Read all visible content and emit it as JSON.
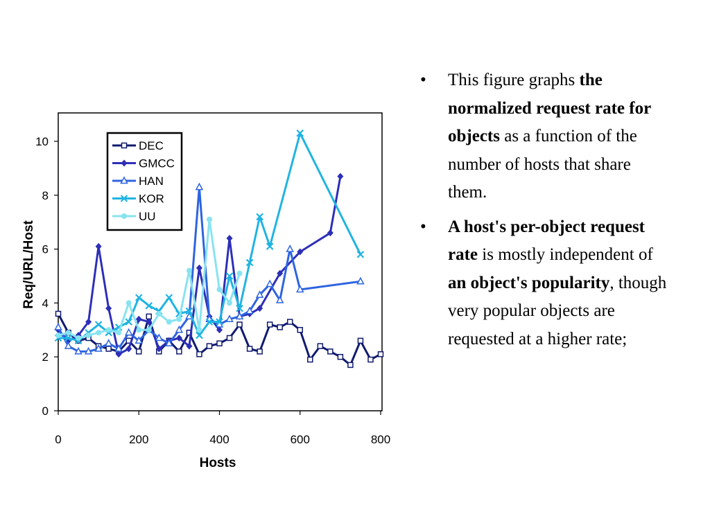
{
  "chart_data": {
    "type": "line",
    "xlabel": "Hosts",
    "ylabel": "Req/URL/Host",
    "xlim": [
      0,
      800
    ],
    "ylim": [
      0,
      11
    ],
    "xticks": [
      0,
      200,
      400,
      600,
      800
    ],
    "yticks": [
      0,
      2,
      4,
      6,
      8,
      10
    ],
    "grid": false,
    "legend_position": "top-left",
    "series": [
      {
        "name": "DEC",
        "color": "#101a6e",
        "marker": "square",
        "x": [
          0,
          25,
          50,
          75,
          100,
          125,
          150,
          175,
          200,
          225,
          250,
          275,
          300,
          325,
          350,
          375,
          400,
          425,
          450,
          475,
          500,
          525,
          550,
          575,
          600,
          625,
          650,
          675,
          700,
          725,
          750,
          775,
          800
        ],
        "y": [
          3.6,
          2.9,
          2.6,
          2.7,
          2.4,
          2.3,
          2.2,
          2.6,
          2.2,
          3.5,
          2.2,
          2.6,
          2.2,
          2.9,
          2.1,
          2.4,
          2.5,
          2.7,
          3.2,
          2.3,
          2.2,
          3.2,
          3.1,
          3.3,
          3.0,
          1.9,
          2.4,
          2.2,
          2.0,
          1.7,
          2.6,
          1.9,
          2.1
        ]
      },
      {
        "name": "GMCC",
        "color": "#2d2fb8",
        "marker": "diamond",
        "x": [
          0,
          25,
          50,
          75,
          100,
          125,
          150,
          175,
          200,
          225,
          250,
          275,
          300,
          325,
          350,
          375,
          400,
          425,
          450,
          475,
          500,
          550,
          600,
          675,
          700
        ],
        "y": [
          3.0,
          2.6,
          2.8,
          3.3,
          6.1,
          3.8,
          2.1,
          2.3,
          3.4,
          3.3,
          2.3,
          2.6,
          2.7,
          2.4,
          5.3,
          3.5,
          3.0,
          6.4,
          3.5,
          3.6,
          3.8,
          5.1,
          5.9,
          6.6,
          8.7
        ]
      },
      {
        "name": "HAN",
        "color": "#2e64e0",
        "marker": "triangle",
        "x": [
          0,
          25,
          50,
          75,
          100,
          125,
          150,
          175,
          200,
          225,
          250,
          275,
          300,
          325,
          350,
          375,
          400,
          425,
          450,
          475,
          500,
          525,
          550,
          575,
          600,
          750
        ],
        "y": [
          3.1,
          2.4,
          2.2,
          2.2,
          2.3,
          2.5,
          2.3,
          2.9,
          2.6,
          3.0,
          2.7,
          2.5,
          3.0,
          3.5,
          8.3,
          3.4,
          3.2,
          3.4,
          3.5,
          3.7,
          4.3,
          4.7,
          4.1,
          6.0,
          4.5,
          4.8
        ]
      },
      {
        "name": "KOR",
        "color": "#1fb4e2",
        "marker": "x",
        "x": [
          0,
          25,
          50,
          75,
          100,
          125,
          150,
          175,
          200,
          225,
          250,
          275,
          300,
          325,
          350,
          375,
          400,
          425,
          450,
          475,
          500,
          525,
          600,
          750
        ],
        "y": [
          2.7,
          2.7,
          2.6,
          2.9,
          3.2,
          2.9,
          3.1,
          3.3,
          4.2,
          3.9,
          3.7,
          4.2,
          3.6,
          3.7,
          2.8,
          3.3,
          3.3,
          5.0,
          3.8,
          5.5,
          7.2,
          6.1,
          10.3,
          5.8
        ]
      },
      {
        "name": "UU",
        "color": "#88e3f0",
        "marker": "circle",
        "x": [
          0,
          25,
          50,
          75,
          100,
          125,
          150,
          175,
          200,
          225,
          250,
          275,
          300,
          325,
          350,
          375,
          400,
          425,
          450
        ],
        "y": [
          2.8,
          2.9,
          2.7,
          2.8,
          2.9,
          3.0,
          2.9,
          4.0,
          3.0,
          3.0,
          3.6,
          3.3,
          3.4,
          5.2,
          3.0,
          7.1,
          4.5,
          4.0,
          5.1
        ]
      }
    ]
  },
  "text": {
    "bullets": [
      {
        "symbol": "•",
        "segments": [
          {
            "text": "This figure graphs ",
            "bold": false
          },
          {
            "text": "the normalized request rate for objects",
            "bold": true
          },
          {
            "text": " as a function of the number of hosts that share them.",
            "bold": false
          }
        ]
      },
      {
        "symbol": "•",
        "segments": [
          {
            "text": "A host's per-object request rate",
            "bold": true
          },
          {
            "text": " is mostly independent of ",
            "bold": false
          },
          {
            "text": "an object's popularity",
            "bold": true
          },
          {
            "text": ", though very popular objects are requested at a higher rate;",
            "bold": false
          }
        ]
      }
    ]
  }
}
